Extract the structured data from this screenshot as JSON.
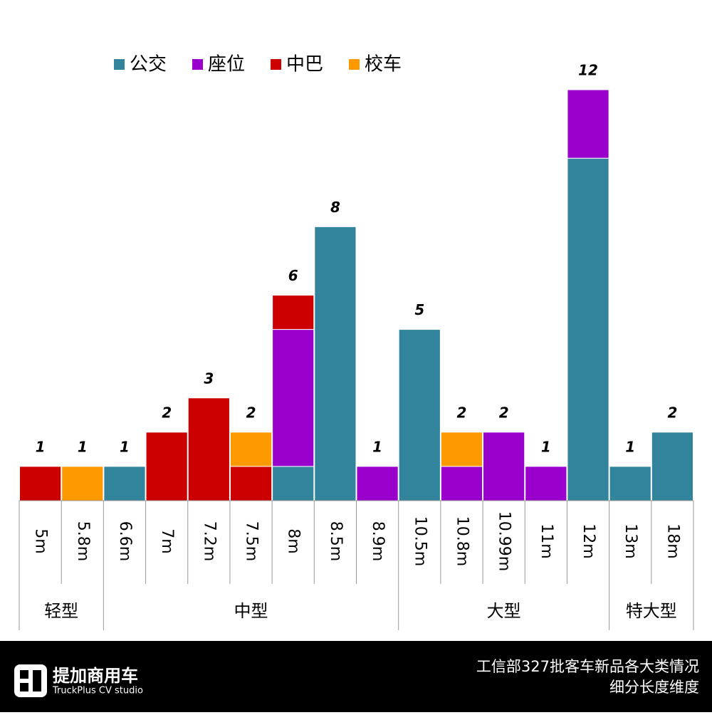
{
  "chart_data": {
    "type": "stacked_bar",
    "categories": [
      "5m",
      "5.8m",
      "6.6m",
      "7m",
      "7.2m",
      "7.5m",
      "8m",
      "8.5m",
      "8.9m",
      "10.5m",
      "10.8m",
      "10.99m",
      "11m",
      "12m",
      "13m",
      "18m"
    ],
    "category_groups": [
      "轻型",
      "轻型",
      "中型",
      "中型",
      "中型",
      "中型",
      "中型",
      "中型",
      "中型",
      "大型",
      "大型",
      "大型",
      "大型",
      "大型",
      "特大型",
      "特大型"
    ],
    "series": [
      {
        "name": "公交",
        "color": "#31849b",
        "values": [
          0,
          0,
          1,
          0,
          0,
          0,
          1,
          8,
          0,
          5,
          0,
          0,
          0,
          10,
          1,
          2
        ]
      },
      {
        "name": "座位",
        "color": "#9900cc",
        "values": [
          0,
          0,
          0,
          0,
          0,
          0,
          4,
          0,
          1,
          0,
          1,
          2,
          1,
          2,
          0,
          0
        ]
      },
      {
        "name": "中巴",
        "color": "#cc0000",
        "values": [
          1,
          0,
          0,
          2,
          3,
          1,
          1,
          0,
          0,
          0,
          0,
          0,
          0,
          0,
          0,
          0
        ]
      },
      {
        "name": "校车",
        "color": "#ff9900",
        "values": [
          0,
          1,
          0,
          0,
          0,
          1,
          0,
          0,
          0,
          0,
          1,
          0,
          0,
          0,
          0,
          0
        ]
      }
    ],
    "totals": [
      1,
      1,
      1,
      2,
      3,
      2,
      6,
      8,
      1,
      5,
      2,
      2,
      1,
      12,
      1,
      2
    ],
    "legend": "top-left",
    "grid": false
  },
  "footer": {
    "brand": "提加商用车",
    "brand_sub": "TruckPlus CV studio",
    "caption": [
      "工信部327批客车新品各大类情况",
      "细分长度维度"
    ]
  }
}
